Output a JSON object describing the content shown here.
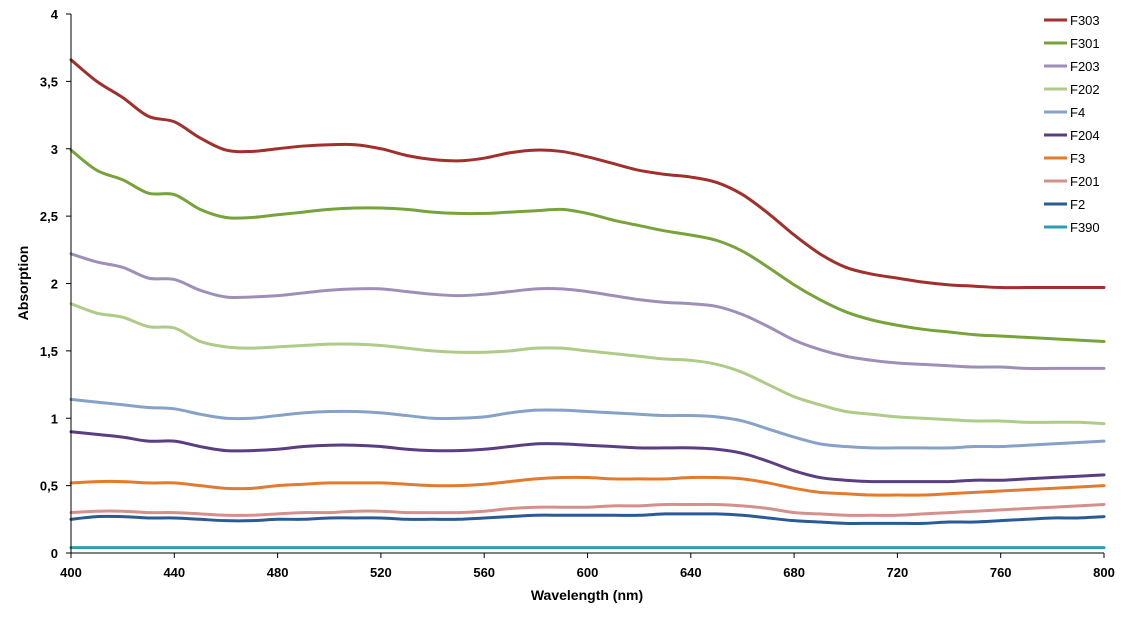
{
  "chart_data": {
    "type": "line",
    "title": "",
    "xlabel": "Wavelength (nm)",
    "ylabel": "Absorption",
    "xlim": [
      400,
      800
    ],
    "ylim": [
      0,
      4
    ],
    "x_ticks": [
      400,
      440,
      480,
      520,
      560,
      600,
      640,
      680,
      720,
      760,
      800
    ],
    "y_ticks": [
      {
        "value": 0,
        "label": "0"
      },
      {
        "value": 0.5,
        "label": "0,5"
      },
      {
        "value": 1,
        "label": "1"
      },
      {
        "value": 1.5,
        "label": "1,5"
      },
      {
        "value": 2,
        "label": "2"
      },
      {
        "value": 2.5,
        "label": "2,5"
      },
      {
        "value": 3,
        "label": "3"
      },
      {
        "value": 3.5,
        "label": "3,5"
      },
      {
        "value": 4,
        "label": "4"
      }
    ],
    "grid": false,
    "legend_position": "right",
    "x": [
      400,
      410,
      420,
      430,
      440,
      450,
      460,
      470,
      480,
      490,
      500,
      510,
      520,
      530,
      540,
      550,
      560,
      570,
      580,
      590,
      600,
      610,
      620,
      630,
      640,
      650,
      660,
      670,
      680,
      690,
      700,
      710,
      720,
      730,
      740,
      750,
      760,
      770,
      780,
      790,
      800
    ],
    "series": [
      {
        "name": "F303",
        "color": "#a0302c",
        "values": [
          3.66,
          3.5,
          3.38,
          3.24,
          3.2,
          3.08,
          2.99,
          2.98,
          3.0,
          3.02,
          3.03,
          3.03,
          3.0,
          2.95,
          2.92,
          2.91,
          2.93,
          2.97,
          2.99,
          2.98,
          2.94,
          2.89,
          2.84,
          2.81,
          2.79,
          2.75,
          2.66,
          2.52,
          2.36,
          2.22,
          2.12,
          2.07,
          2.04,
          2.01,
          1.99,
          1.98,
          1.97,
          1.97,
          1.97,
          1.97,
          1.97
        ]
      },
      {
        "name": "F301",
        "color": "#77a33a",
        "values": [
          2.99,
          2.84,
          2.77,
          2.67,
          2.66,
          2.55,
          2.49,
          2.49,
          2.51,
          2.53,
          2.55,
          2.56,
          2.56,
          2.55,
          2.53,
          2.52,
          2.52,
          2.53,
          2.54,
          2.55,
          2.52,
          2.47,
          2.43,
          2.39,
          2.36,
          2.32,
          2.24,
          2.12,
          1.99,
          1.88,
          1.79,
          1.73,
          1.69,
          1.66,
          1.64,
          1.62,
          1.61,
          1.6,
          1.59,
          1.58,
          1.57
        ]
      },
      {
        "name": "F203",
        "color": "#9e8fb9",
        "values": [
          2.22,
          2.16,
          2.12,
          2.04,
          2.03,
          1.95,
          1.9,
          1.9,
          1.91,
          1.93,
          1.95,
          1.96,
          1.96,
          1.94,
          1.92,
          1.91,
          1.92,
          1.94,
          1.96,
          1.96,
          1.94,
          1.91,
          1.88,
          1.86,
          1.85,
          1.83,
          1.77,
          1.68,
          1.58,
          1.51,
          1.46,
          1.43,
          1.41,
          1.4,
          1.39,
          1.38,
          1.38,
          1.37,
          1.37,
          1.37,
          1.37
        ]
      },
      {
        "name": "F202",
        "color": "#aecb87",
        "values": [
          1.85,
          1.78,
          1.75,
          1.68,
          1.67,
          1.57,
          1.53,
          1.52,
          1.53,
          1.54,
          1.55,
          1.55,
          1.54,
          1.52,
          1.5,
          1.49,
          1.49,
          1.5,
          1.52,
          1.52,
          1.5,
          1.48,
          1.46,
          1.44,
          1.43,
          1.4,
          1.34,
          1.25,
          1.16,
          1.1,
          1.05,
          1.03,
          1.01,
          1.0,
          0.99,
          0.98,
          0.98,
          0.97,
          0.97,
          0.97,
          0.96
        ]
      },
      {
        "name": "F4",
        "color": "#86a2c8",
        "values": [
          1.14,
          1.12,
          1.1,
          1.08,
          1.07,
          1.03,
          1.0,
          1.0,
          1.02,
          1.04,
          1.05,
          1.05,
          1.04,
          1.02,
          1.0,
          1.0,
          1.01,
          1.04,
          1.06,
          1.06,
          1.05,
          1.04,
          1.03,
          1.02,
          1.02,
          1.01,
          0.98,
          0.92,
          0.86,
          0.81,
          0.79,
          0.78,
          0.78,
          0.78,
          0.78,
          0.79,
          0.79,
          0.8,
          0.81,
          0.82,
          0.83
        ]
      },
      {
        "name": "F204",
        "color": "#5a3e82",
        "values": [
          0.9,
          0.88,
          0.86,
          0.83,
          0.83,
          0.79,
          0.76,
          0.76,
          0.77,
          0.79,
          0.8,
          0.8,
          0.79,
          0.77,
          0.76,
          0.76,
          0.77,
          0.79,
          0.81,
          0.81,
          0.8,
          0.79,
          0.78,
          0.78,
          0.78,
          0.77,
          0.74,
          0.68,
          0.61,
          0.56,
          0.54,
          0.53,
          0.53,
          0.53,
          0.53,
          0.54,
          0.54,
          0.55,
          0.56,
          0.57,
          0.58
        ]
      },
      {
        "name": "F3",
        "color": "#e27b2e",
        "values": [
          0.52,
          0.53,
          0.53,
          0.52,
          0.52,
          0.5,
          0.48,
          0.48,
          0.5,
          0.51,
          0.52,
          0.52,
          0.52,
          0.51,
          0.5,
          0.5,
          0.51,
          0.53,
          0.55,
          0.56,
          0.56,
          0.55,
          0.55,
          0.55,
          0.56,
          0.56,
          0.55,
          0.52,
          0.48,
          0.45,
          0.44,
          0.43,
          0.43,
          0.43,
          0.44,
          0.45,
          0.46,
          0.47,
          0.48,
          0.49,
          0.5
        ]
      },
      {
        "name": "F201",
        "color": "#d4908d",
        "values": [
          0.3,
          0.31,
          0.31,
          0.3,
          0.3,
          0.29,
          0.28,
          0.28,
          0.29,
          0.3,
          0.3,
          0.31,
          0.31,
          0.3,
          0.3,
          0.3,
          0.31,
          0.33,
          0.34,
          0.34,
          0.34,
          0.35,
          0.35,
          0.36,
          0.36,
          0.36,
          0.35,
          0.33,
          0.3,
          0.29,
          0.28,
          0.28,
          0.28,
          0.29,
          0.3,
          0.31,
          0.32,
          0.33,
          0.34,
          0.35,
          0.36
        ]
      },
      {
        "name": "F2",
        "color": "#2b5b94",
        "values": [
          0.25,
          0.27,
          0.27,
          0.26,
          0.26,
          0.25,
          0.24,
          0.24,
          0.25,
          0.25,
          0.26,
          0.26,
          0.26,
          0.25,
          0.25,
          0.25,
          0.26,
          0.27,
          0.28,
          0.28,
          0.28,
          0.28,
          0.28,
          0.29,
          0.29,
          0.29,
          0.28,
          0.26,
          0.24,
          0.23,
          0.22,
          0.22,
          0.22,
          0.22,
          0.23,
          0.23,
          0.24,
          0.25,
          0.26,
          0.26,
          0.27
        ]
      },
      {
        "name": "F390",
        "color": "#2e9fae",
        "values": [
          0.04,
          0.04,
          0.04,
          0.04,
          0.04,
          0.04,
          0.04,
          0.04,
          0.04,
          0.04,
          0.04,
          0.04,
          0.04,
          0.04,
          0.04,
          0.04,
          0.04,
          0.04,
          0.04,
          0.04,
          0.04,
          0.04,
          0.04,
          0.04,
          0.04,
          0.04,
          0.04,
          0.04,
          0.04,
          0.04,
          0.04,
          0.04,
          0.04,
          0.04,
          0.04,
          0.04,
          0.04,
          0.04,
          0.04,
          0.04,
          0.04
        ]
      }
    ]
  }
}
